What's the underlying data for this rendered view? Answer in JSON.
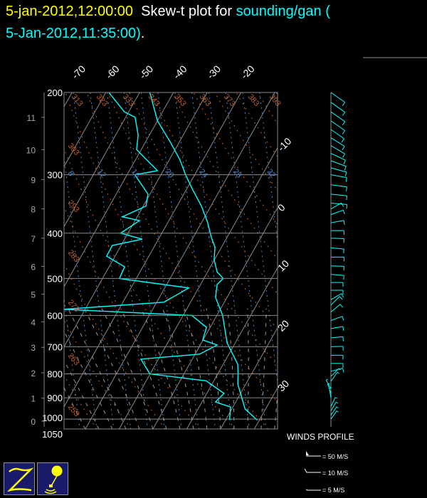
{
  "title": {
    "date": "5-jan-2012,12:00:00",
    "text": "Skew-t plot for",
    "source": "sounding/gan (",
    "source_time": "5-Jan-2012,11:35:00)",
    "end": "."
  },
  "chart_data": {
    "type": "skew-t",
    "y_axis": {
      "quantity": "pressure (hPa)",
      "scale": "log",
      "range": [
        1050,
        200
      ],
      "ticks": [
        200,
        300,
        400,
        500,
        600,
        700,
        800,
        900,
        1000,
        1050
      ]
    },
    "height_axis_km": {
      "ticks": [
        {
          "km": "0",
          "p": 1010
        },
        {
          "km": "1",
          "p": 902
        },
        {
          "km": "2",
          "p": 796
        },
        {
          "km": "3",
          "p": 702
        },
        {
          "km": "4",
          "p": 619
        },
        {
          "km": "5",
          "p": 540
        },
        {
          "km": "6",
          "p": 471
        },
        {
          "km": "7",
          "p": 410
        },
        {
          "km": "8",
          "p": 355
        },
        {
          "km": "9",
          "p": 307
        },
        {
          "km": "10",
          "p": 265
        },
        {
          "km": "11",
          "p": 226
        }
      ]
    },
    "isotherm_labels_top": [
      -70,
      -60,
      -50,
      -40,
      -30,
      -20
    ],
    "isotherm_labels_right": [
      -10,
      0,
      10,
      20,
      30
    ],
    "dry_adiabat_labels_top": [
      313,
      323,
      333,
      343,
      353,
      363,
      373,
      383,
      393
    ],
    "dry_adiabat_labels_left": [
      303,
      293,
      283,
      273,
      263,
      253
    ],
    "mixing_ratio_labels": [
      8,
      12,
      16,
      20,
      24,
      28,
      32
    ],
    "series": [
      {
        "kind": "temperature",
        "color": "#00ffff",
        "points": [
          [
            200,
            -57
          ],
          [
            230,
            -50
          ],
          [
            256,
            -42.5
          ],
          [
            279,
            -36.8
          ],
          [
            300,
            -32.7
          ],
          [
            321,
            -28.5
          ],
          [
            350,
            -22.8
          ],
          [
            379,
            -18.3
          ],
          [
            408,
            -14.7
          ],
          [
            429,
            -11.9
          ],
          [
            456,
            -10.1
          ],
          [
            484,
            -7.2
          ],
          [
            500,
            -4.3
          ],
          [
            515,
            -5.1
          ],
          [
            549,
            -3.4
          ],
          [
            600,
            1.7
          ],
          [
            687,
            7.6
          ],
          [
            763,
            14.3
          ],
          [
            800,
            16.0
          ],
          [
            841,
            17.6
          ],
          [
            902,
            21.2
          ],
          [
            951,
            23.9
          ],
          [
            1005,
            29.4
          ]
        ]
      },
      {
        "kind": "dewpoint",
        "color": "#00ffff",
        "points": [
          [
            200,
            -69.1
          ],
          [
            220,
            -61.3
          ],
          [
            226,
            -57.2
          ],
          [
            247,
            -53.3
          ],
          [
            265,
            -51.4
          ],
          [
            294,
            -41.7
          ],
          [
            300,
            -47.7
          ],
          [
            330,
            -40.6
          ],
          [
            350,
            -39.2
          ],
          [
            369,
            -44.4
          ],
          [
            376,
            -38.7
          ],
          [
            400,
            -42.2
          ],
          [
            412,
            -34.8
          ],
          [
            425,
            -42.6
          ],
          [
            448,
            -42.5
          ],
          [
            472,
            -35.4
          ],
          [
            500,
            -35.0
          ],
          [
            524,
            -12.9
          ],
          [
            562,
            -17.9
          ],
          [
            582,
            -46.2
          ],
          [
            600,
            -7.4
          ],
          [
            636,
            -1.1
          ],
          [
            677,
            -0.1
          ],
          [
            694,
            5.0
          ],
          [
            726,
            1.3
          ],
          [
            744,
            -15.2
          ],
          [
            800,
            -10.1
          ],
          [
            828,
            7.7
          ],
          [
            881,
            15.1
          ],
          [
            919,
            14.0
          ],
          [
            942,
            19.3
          ],
          [
            1005,
            21.2
          ]
        ]
      }
    ],
    "winds": [
      [
        200,
        125,
        20
      ],
      [
        210,
        125,
        20
      ],
      [
        220,
        125,
        20
      ],
      [
        230,
        125,
        20
      ],
      [
        240,
        125,
        18
      ],
      [
        250,
        122,
        18
      ],
      [
        260,
        120,
        18
      ],
      [
        270,
        115,
        18
      ],
      [
        280,
        110,
        18
      ],
      [
        290,
        105,
        18
      ],
      [
        300,
        100,
        18
      ],
      [
        315,
        98,
        18
      ],
      [
        330,
        96,
        18
      ],
      [
        345,
        95,
        18
      ],
      [
        355,
        60,
        10
      ],
      [
        365,
        70,
        12
      ],
      [
        380,
        80,
        12
      ],
      [
        395,
        90,
        12
      ],
      [
        410,
        92,
        12
      ],
      [
        430,
        95,
        12
      ],
      [
        450,
        90,
        12
      ],
      [
        470,
        92,
        12
      ],
      [
        490,
        95,
        12
      ],
      [
        510,
        90,
        10
      ],
      [
        530,
        90,
        10
      ],
      [
        555,
        60,
        10
      ],
      [
        570,
        45,
        10
      ],
      [
        590,
        50,
        10
      ],
      [
        615,
        70,
        10
      ],
      [
        640,
        80,
        10
      ],
      [
        670,
        85,
        10
      ],
      [
        700,
        88,
        10
      ],
      [
        730,
        90,
        10
      ],
      [
        760,
        90,
        10
      ],
      [
        790,
        75,
        10
      ],
      [
        810,
        45,
        8
      ],
      [
        830,
        35,
        8
      ],
      [
        860,
        330,
        5
      ],
      [
        880,
        340,
        5
      ],
      [
        900,
        350,
        5
      ],
      [
        940,
        25,
        6
      ],
      [
        960,
        30,
        6
      ],
      [
        980,
        35,
        6
      ],
      [
        1000,
        35,
        6
      ]
    ],
    "grid": true
  },
  "legend": {
    "title": "WINDS PROFILE",
    "items": [
      "= 50 M/S",
      "= 10 M/S",
      "= 5 M/S"
    ]
  },
  "colors": {
    "background": "#000000",
    "trace": "#00ffff",
    "isotherm": "#8a8a8a",
    "dry_adiabat": "#c0602a",
    "mixing_ratio": "#4a86c8",
    "moist_adiabat": "#9a9a9a",
    "date": "#ffff00",
    "logo_bg": "#1a1a6a",
    "logo_art": "#ffff00"
  },
  "logos": [
    "z-logo",
    "balloon-logo"
  ]
}
